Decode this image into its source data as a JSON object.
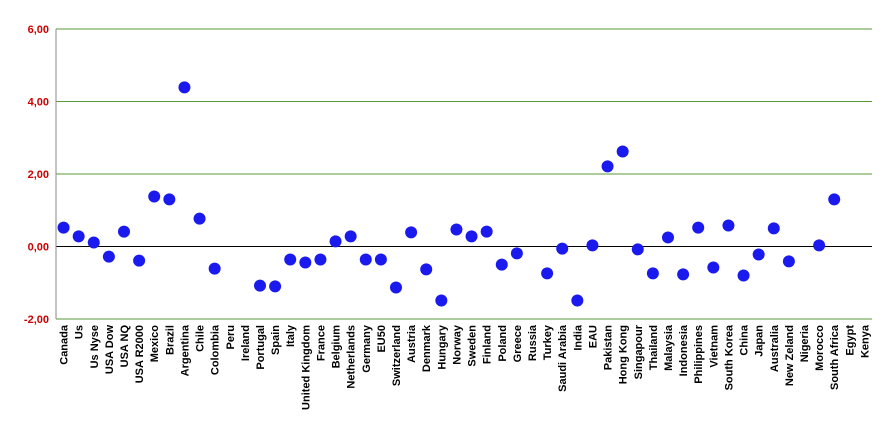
{
  "chart_data": {
    "type": "dot",
    "categories": [
      "Canada",
      "Us",
      "Us Nyse",
      "USA Dow",
      "USA NQ",
      "USA R2000",
      "Mexico",
      "Brazil",
      "Argentina",
      "Chile",
      "Colombia",
      "Peru",
      "Ireland",
      "Portugal",
      "Spain",
      "Italy",
      "United Kingdom",
      "France",
      "Belgium",
      "Netherlands",
      "Germany",
      "EU50",
      "Switzerland",
      "Austria",
      "Denmark",
      "Hungary",
      "Norway",
      "Sweden",
      "Finland",
      "Poland",
      "Greece",
      "Russia",
      "Turkey",
      "Saudi Arabia",
      "India",
      "EAU",
      "Pakistan",
      "Hong Kong",
      "Singapour",
      "Thailand",
      "Malaysia",
      "Indonesia",
      "Philippines",
      "Vietnam",
      "South Korea",
      "China",
      "Japan",
      "Australia",
      "New Zeland",
      "Nigeria",
      "Morocco",
      "South Africa",
      "Egypt",
      "Kenya"
    ],
    "values": [
      0.52,
      0.28,
      0.11,
      -0.28,
      0.41,
      -0.39,
      1.38,
      1.3,
      4.39,
      0.77,
      -0.61,
      null,
      null,
      -1.08,
      -1.1,
      -0.36,
      -0.44,
      -0.36,
      0.14,
      0.28,
      -0.36,
      -0.36,
      -1.13,
      0.39,
      -0.63,
      -1.49,
      0.47,
      0.28,
      0.41,
      -0.5,
      -0.19,
      null,
      -0.74,
      -0.06,
      -1.49,
      0.03,
      2.21,
      2.62,
      -0.08,
      -0.74,
      0.25,
      -0.77,
      0.52,
      -0.58,
      0.58,
      -0.8,
      -0.22,
      0.5,
      -0.41,
      null,
      0.03,
      1.3,
      null,
      null
    ],
    "color": "#1a1aee",
    "ylim": [
      -2,
      6
    ],
    "yticks": [
      {
        "value": -2,
        "label": "-2,00"
      },
      {
        "value": 0,
        "label": "0,00"
      },
      {
        "value": 2,
        "label": "2,00"
      },
      {
        "value": 4,
        "label": "4,00"
      },
      {
        "value": 6,
        "label": "6,00"
      }
    ],
    "grid": true,
    "grid_color": "#5a9a3a",
    "tick_label_color": "#cc0000"
  }
}
